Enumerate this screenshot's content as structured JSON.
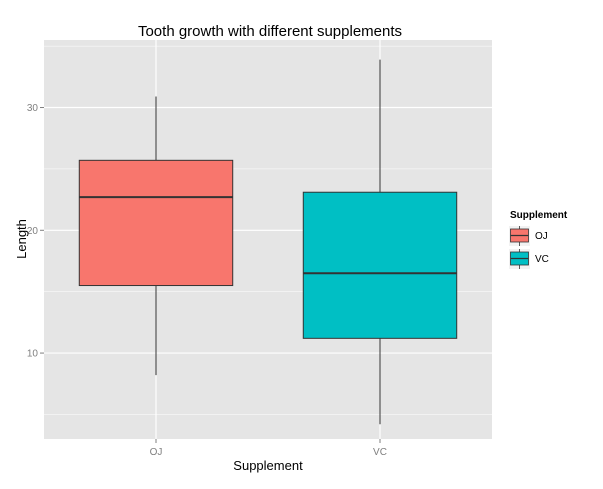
{
  "chart_data": {
    "type": "boxplot",
    "title": "Tooth growth with different supplements",
    "xlabel": "Supplement",
    "ylabel": "Length",
    "categories": [
      "OJ",
      "VC"
    ],
    "ylim": [
      3,
      35.5
    ],
    "yticks": [
      10,
      20,
      30
    ],
    "grid": true,
    "legend": {
      "title": "Supplement",
      "position": "right",
      "entries": [
        "OJ",
        "VC"
      ]
    },
    "boxes": [
      {
        "category": "OJ",
        "whisker_low": 8.2,
        "q1": 15.5,
        "median": 22.7,
        "q3": 25.7,
        "whisker_high": 30.9,
        "color": "#F8766D"
      },
      {
        "category": "VC",
        "whisker_low": 4.2,
        "q1": 11.2,
        "median": 16.5,
        "q3": 23.1,
        "whisker_high": 33.9,
        "color": "#00BFC4"
      }
    ],
    "panel_color": "#E5E5E5",
    "grid_color": "#FFFFFF"
  }
}
